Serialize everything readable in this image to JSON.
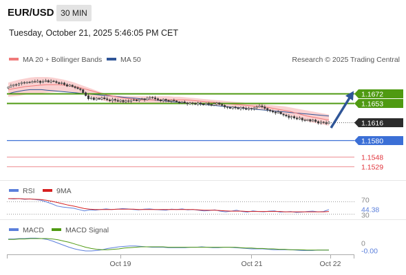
{
  "header": {
    "pair": "EUR/USD",
    "timeframe": "30 MIN",
    "timestamp": "Tuesday, October 21, 2025 5:46:05 PM CET",
    "credit": "Research © 2025 Trading Central"
  },
  "colors": {
    "resistance": "#4f9a12",
    "support": "#3b6fd6",
    "target": "#e0333b",
    "price_tag": "#2b2b2b",
    "ma20": "#f07a7a",
    "ma50": "#2f5597",
    "band": "#f9c9c9",
    "rsi": "#5b7fdb",
    "rsi_ma": "#d62020",
    "macd": "#5b7fdb",
    "macd_signal": "#4f9a12"
  },
  "chart_data": [
    {
      "type": "candlestick",
      "legend": [
        {
          "name": "MA 20 + Bollinger Bands",
          "color": "#f07a7a"
        },
        {
          "name": "MA 50",
          "color": "#2f5597"
        }
      ],
      "x_ticks": [
        "Oct 19",
        "Oct 21",
        "Oct 22"
      ],
      "ylim": [
        1.1515,
        1.1705
      ],
      "close": [
        1.1685,
        1.1688,
        1.169,
        1.1689,
        1.1692,
        1.1694,
        1.1693,
        1.1695,
        1.1694,
        1.1696,
        1.1695,
        1.1697,
        1.1694,
        1.1696,
        1.1698,
        1.1695,
        1.1697,
        1.1696,
        1.1694,
        1.1692,
        1.1693,
        1.169,
        1.1687,
        1.1689,
        1.1686,
        1.1684,
        1.1682,
        1.168,
        1.1674,
        1.1668,
        1.1662,
        1.1664,
        1.166,
        1.1663,
        1.1661,
        1.1664,
        1.1662,
        1.166,
        1.1658,
        1.1661,
        1.1659,
        1.1657,
        1.1659,
        1.1656,
        1.1658,
        1.1657,
        1.1659,
        1.166,
        1.1658,
        1.1661,
        1.1662,
        1.166,
        1.1663,
        1.1665,
        1.1664,
        1.1662,
        1.166,
        1.1658,
        1.1661,
        1.1659,
        1.1657,
        1.1659,
        1.1658,
        1.1656,
        1.1654,
        1.1656,
        1.1654,
        1.1652,
        1.1654,
        1.1653,
        1.1651,
        1.1654,
        1.1652,
        1.165,
        1.1653,
        1.1651,
        1.1649,
        1.1652,
        1.1654,
        1.1651,
        1.1649,
        1.1646,
        1.1645,
        1.1643,
        1.1646,
        1.1644,
        1.1642,
        1.1645,
        1.1643,
        1.1641,
        1.1643,
        1.1642,
        1.1644,
        1.1646,
        1.1648,
        1.1646,
        1.1643,
        1.164,
        1.1638,
        1.1636,
        1.1634,
        1.1636,
        1.1632,
        1.163,
        1.1628,
        1.1625,
        1.1627,
        1.1624,
        1.1622,
        1.1624,
        1.162,
        1.1619,
        1.1621,
        1.1618,
        1.162,
        1.1617,
        1.1614,
        1.1616,
        1.1615,
        1.1613,
        1.1616
      ],
      "ma20": [
        1.168,
        1.1682,
        1.1684,
        1.1686,
        1.1687,
        1.1688,
        1.1689,
        1.169,
        1.169,
        1.169,
        1.1689,
        1.1688,
        1.1686,
        1.1684,
        1.1681,
        1.1678,
        1.1675,
        1.1672,
        1.1669,
        1.1667,
        1.1665,
        1.1663,
        1.1662,
        1.1661,
        1.166,
        1.166,
        1.166,
        1.166,
        1.166,
        1.166,
        1.166,
        1.166,
        1.166,
        1.1659,
        1.1658,
        1.1657,
        1.1656,
        1.1655,
        1.1654,
        1.1653,
        1.1652,
        1.1651,
        1.165,
        1.1649,
        1.1648,
        1.1647,
        1.1646,
        1.1645,
        1.1643,
        1.1641,
        1.1639,
        1.1637,
        1.1634,
        1.1631,
        1.1628,
        1.1626,
        1.1624,
        1.1622,
        1.162
      ],
      "ma50": [
        1.1672,
        1.1675,
        1.1677,
        1.1679,
        1.168,
        1.168,
        1.168,
        1.1679,
        1.1678,
        1.1677,
        1.1676,
        1.1675,
        1.1674,
        1.1673,
        1.1672,
        1.1671,
        1.167,
        1.1669,
        1.1668,
        1.1667,
        1.1666,
        1.1665,
        1.1664,
        1.1663,
        1.1662,
        1.1661,
        1.166,
        1.1659,
        1.1658,
        1.1657,
        1.1656,
        1.1655,
        1.1654,
        1.1653,
        1.1652,
        1.1651,
        1.165,
        1.1649,
        1.1648,
        1.1647,
        1.1646,
        1.1645,
        1.1644,
        1.1643,
        1.1642,
        1.1641,
        1.164,
        1.1639,
        1.1638,
        1.1637,
        1.1636,
        1.1635,
        1.1634,
        1.1633,
        1.1632,
        1.1631,
        1.163,
        1.1629,
        1.1628
      ],
      "band_upper": [
        1.1694,
        1.1697,
        1.17,
        1.1702,
        1.1704,
        1.1705,
        1.1705,
        1.1705,
        1.1704,
        1.1702,
        1.17,
        1.1697,
        1.1694,
        1.169,
        1.1686,
        1.1682,
        1.1678,
        1.1674,
        1.1671,
        1.1669,
        1.1668,
        1.1667,
        1.1667,
        1.1667,
        1.1667,
        1.1667,
        1.1667,
        1.1667,
        1.1667,
        1.1667,
        1.1666,
        1.1666,
        1.1665,
        1.1664,
        1.1663,
        1.1662,
        1.1661,
        1.166,
        1.1659,
        1.1658,
        1.1657,
        1.1656,
        1.1655,
        1.1654,
        1.1653,
        1.1652,
        1.1651,
        1.165,
        1.1649,
        1.1648,
        1.1647,
        1.1645,
        1.1643,
        1.1641,
        1.1639,
        1.1637,
        1.1635,
        1.1633,
        1.1631
      ],
      "band_lower": [
        1.1666,
        1.1667,
        1.1668,
        1.167,
        1.1671,
        1.1672,
        1.1673,
        1.1674,
        1.1675,
        1.1676,
        1.1676,
        1.1676,
        1.1675,
        1.1673,
        1.167,
        1.1666,
        1.1662,
        1.1659,
        1.1656,
        1.1654,
        1.1653,
        1.1652,
        1.1652,
        1.1652,
        1.1653,
        1.1653,
        1.1653,
        1.1654,
        1.1654,
        1.1654,
        1.1654,
        1.1654,
        1.1654,
        1.1653,
        1.1652,
        1.1651,
        1.165,
        1.1649,
        1.1648,
        1.1647,
        1.1646,
        1.1645,
        1.1644,
        1.1643,
        1.1642,
        1.1641,
        1.164,
        1.1639,
        1.1637,
        1.1634,
        1.1631,
        1.1628,
        1.1625,
        1.1621,
        1.1618,
        1.1615,
        1.1613,
        1.1611,
        1.1609
      ],
      "levels": {
        "resistance": [
          1.1672,
          1.1653
        ],
        "last_price": 1.1616,
        "support": 1.158,
        "targets": [
          1.1548,
          1.1529
        ]
      },
      "labels": {
        "r1": "1.1672",
        "r2": "1.1653",
        "last": "1.1616",
        "s1": "1.1580",
        "t1": "1.1548",
        "t2": "1.1529"
      },
      "forecast_target": 1.1672
    },
    {
      "type": "line",
      "legend": [
        {
          "name": "RSI",
          "color": "#5b7fdb"
        },
        {
          "name": "9MA",
          "color": "#d62020"
        }
      ],
      "ylim": [
        20,
        80
      ],
      "levels": [
        70,
        30
      ],
      "level_labels": [
        "70",
        "30"
      ],
      "current_value": 44.38,
      "current_label": "44.38",
      "series": [
        {
          "values": [
            78,
            77,
            78,
            76,
            77,
            75,
            73,
            68,
            62,
            55,
            52,
            50,
            48,
            44,
            40,
            43,
            42,
            44,
            46,
            44,
            45,
            47,
            46,
            44,
            43,
            45,
            46,
            44,
            43,
            42,
            45,
            44,
            46,
            43,
            44,
            42,
            40,
            41,
            43,
            39,
            37,
            39,
            42,
            38,
            36,
            40,
            38,
            37,
            39,
            40,
            36,
            37,
            38,
            35,
            36,
            38,
            39,
            37,
            38,
            44
          ]
        },
        {
          "values": [
            78,
            78,
            78,
            77,
            77,
            76,
            75,
            73,
            70,
            66,
            62,
            58,
            55,
            51,
            47,
            45,
            44,
            44,
            44,
            44,
            45,
            45,
            45,
            45,
            44,
            44,
            44,
            44,
            44,
            44,
            44,
            44,
            44,
            44,
            44,
            43,
            42,
            42,
            42,
            41,
            40,
            39,
            39,
            39,
            38,
            38,
            38,
            38,
            38,
            38,
            38,
            37,
            37,
            37,
            37,
            37,
            37,
            37,
            37,
            38
          ]
        }
      ]
    },
    {
      "type": "line",
      "legend": [
        {
          "name": "MACD",
          "color": "#5b7fdb"
        },
        {
          "name": "MACD Signal",
          "color": "#4f9a12"
        }
      ],
      "ylim": [
        -0.0016,
        0.0024
      ],
      "zero_label": "0",
      "current_label": "-0.00",
      "series": [
        {
          "values": [
            0.0018,
            0.0018,
            0.0019,
            0.0019,
            0.002,
            0.002,
            0.0019,
            0.0017,
            0.0013,
            0.0008,
            0.0003,
            -0.0002,
            -0.0006,
            -0.0009,
            -0.0011,
            -0.0011,
            -0.001,
            -0.0008,
            -0.0005,
            -0.0003,
            -0.0001,
            0.0,
            0.0001,
            0.0001,
            0.0,
            -0.0001,
            -0.0002,
            -0.0002,
            -0.0002,
            -0.0003,
            -0.0003,
            -0.0003,
            -0.0003,
            -0.0002,
            -0.0002,
            -0.0001,
            -0.0002,
            -0.0003,
            -0.0003,
            -0.0002,
            -0.0002,
            -0.0003,
            -0.0004,
            -0.0005,
            -0.0006,
            -0.0006,
            -0.0006,
            -0.0007,
            -0.0008,
            -0.0008,
            -0.0008,
            -0.0008,
            -0.0009,
            -0.001,
            -0.001,
            -0.001,
            -0.0009,
            -0.0009,
            -0.0009
          ]
        },
        {
          "values": [
            0.0017,
            0.0017,
            0.0018,
            0.0018,
            0.0019,
            0.0019,
            0.0019,
            0.0019,
            0.0018,
            0.0016,
            0.0013,
            0.001,
            0.0006,
            0.0002,
            -0.0002,
            -0.0005,
            -0.0007,
            -0.0008,
            -0.0008,
            -0.0007,
            -0.0006,
            -0.0004,
            -0.0003,
            -0.0002,
            -0.0001,
            -0.0001,
            -0.0001,
            -0.0001,
            -0.0001,
            -0.0002,
            -0.0002,
            -0.0002,
            -0.0002,
            -0.0002,
            -0.0002,
            -0.0002,
            -0.0002,
            -0.0002,
            -0.0002,
            -0.0002,
            -0.0002,
            -0.0002,
            -0.0003,
            -0.0004,
            -0.0004,
            -0.0005,
            -0.0005,
            -0.0006,
            -0.0006,
            -0.0007,
            -0.0007,
            -0.0008,
            -0.0008,
            -0.0008,
            -0.0009,
            -0.0009,
            -0.0009,
            -0.0009,
            -0.0009
          ]
        }
      ]
    }
  ]
}
